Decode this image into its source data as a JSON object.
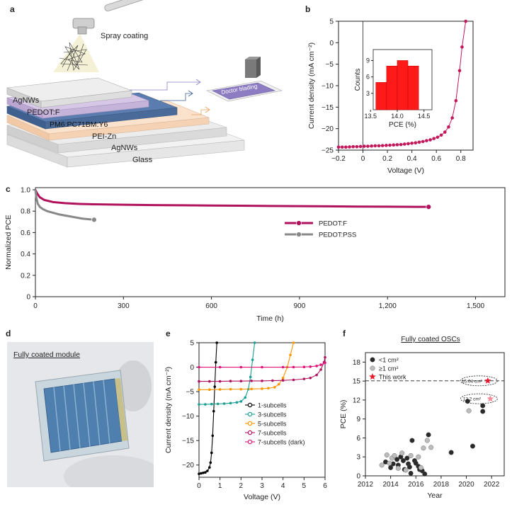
{
  "panel_labels": {
    "a": "a",
    "b": "b",
    "c": "c",
    "d": "d",
    "e": "e",
    "f": "f"
  },
  "schematic": {
    "spray_label": "Spray coating",
    "doctor_label": "Doctor blading",
    "layers": [
      "AgNWs",
      "PEDOT:F",
      "PM6:PC71BM:Y6",
      "PEI-Zn",
      "AgNWs",
      "Glass"
    ],
    "colors": {
      "pedot": "#c5b3d9",
      "active": "#4a6b9a",
      "pei": "#f6d2b4",
      "agnws": "#e3e3e3",
      "glass": "#efefef"
    }
  },
  "photo": {
    "caption": "Fully coated module"
  },
  "chart_data": [
    {
      "id": "b",
      "type": "line",
      "xlabel": "Voltage (V)",
      "ylabel": "Current density (mA cm⁻²)",
      "xlim": [
        -0.2,
        0.9
      ],
      "ylim": [
        -25,
        5
      ],
      "xticks": [
        -0.2,
        0,
        0.2,
        0.4,
        0.6,
        0.8
      ],
      "yticks": [
        5,
        0,
        -5,
        -10,
        -15,
        -20,
        -25
      ],
      "color": "#c2185b",
      "series": [
        {
          "x": [
            -0.2,
            -0.17,
            -0.14,
            -0.11,
            -0.08,
            -0.05,
            -0.02,
            0.01,
            0.04,
            0.07,
            0.1,
            0.13,
            0.16,
            0.19,
            0.22,
            0.25,
            0.28,
            0.31,
            0.34,
            0.37,
            0.4,
            0.43,
            0.46,
            0.49,
            0.52,
            0.55,
            0.58,
            0.61,
            0.64,
            0.67,
            0.7,
            0.73,
            0.76,
            0.79,
            0.81,
            0.84
          ],
          "y": [
            -24.3,
            -24.3,
            -24.3,
            -24.25,
            -24.2,
            -24.2,
            -24.15,
            -24.1,
            -24.1,
            -24.05,
            -24.0,
            -24.0,
            -23.95,
            -23.9,
            -23.85,
            -23.8,
            -23.75,
            -23.7,
            -23.6,
            -23.5,
            -23.4,
            -23.3,
            -23.15,
            -23.0,
            -22.8,
            -22.6,
            -22.3,
            -22.0,
            -21.5,
            -20.8,
            -19.6,
            -17.5,
            -13.5,
            -6.5,
            -1.0,
            5.0
          ]
        }
      ],
      "inset": {
        "type": "bar",
        "xlabel": "PCE (%)",
        "ylabel": "Counts",
        "categories": [
          13.7,
          13.9,
          14.1,
          14.3
        ],
        "values": [
          5,
          8,
          9,
          8
        ],
        "xticks": [
          13.5,
          14.0,
          14.5
        ],
        "yticks": [
          3,
          6,
          9
        ],
        "ylim": [
          0,
          11
        ],
        "xlim": [
          13.55,
          14.65
        ],
        "color": "#ff1a1a"
      }
    },
    {
      "id": "c",
      "type": "line",
      "xlabel": "Time (h)",
      "ylabel": "Normalized PCE",
      "xlim": [
        0,
        1600
      ],
      "ylim": [
        0,
        1.02
      ],
      "xticks": [
        0,
        300,
        600,
        900,
        1200,
        1500
      ],
      "xtick_labels": [
        "0",
        "300",
        "600",
        "900",
        "1,200",
        "1,500"
      ],
      "yticks": [
        0,
        0.2,
        0.4,
        0.6,
        0.8,
        1.0
      ],
      "ytick_labels": [
        "0",
        "0.2",
        "0.4",
        "0.6",
        "0.8",
        "1.0"
      ],
      "legend": "right",
      "series": [
        {
          "name": "PEDOT:F",
          "color": "#b0125e",
          "x": [
            0,
            5,
            15,
            30,
            60,
            100,
            150,
            200,
            300,
            400,
            500,
            600,
            700,
            800,
            900,
            1000,
            1100,
            1200,
            1300,
            1340
          ],
          "y": [
            1.0,
            0.97,
            0.93,
            0.905,
            0.885,
            0.875,
            0.868,
            0.864,
            0.86,
            0.857,
            0.855,
            0.853,
            0.851,
            0.849,
            0.847,
            0.845,
            0.843,
            0.842,
            0.84,
            0.84
          ]
        },
        {
          "name": "PEDOT:PSS",
          "color": "#888888",
          "x": [
            0,
            3,
            8,
            15,
            25,
            40,
            60,
            80,
            100,
            130,
            160,
            200
          ],
          "y": [
            1.0,
            0.93,
            0.87,
            0.84,
            0.82,
            0.8,
            0.785,
            0.77,
            0.76,
            0.745,
            0.73,
            0.72
          ]
        }
      ]
    },
    {
      "id": "e",
      "type": "line",
      "xlabel": "Voltage (V)",
      "ylabel": "Current density (mA cm⁻²)",
      "xlim": [
        0,
        6
      ],
      "ylim": [
        -22.5,
        5
      ],
      "xticks": [
        0,
        1,
        2,
        3,
        4,
        5,
        6
      ],
      "yticks": [
        5,
        0,
        -5,
        -10,
        -15,
        -20
      ],
      "legend": "bottom-right",
      "series": [
        {
          "name": "1-subcells",
          "color": "#000000",
          "x": [
            0,
            0.1,
            0.2,
            0.3,
            0.4,
            0.5,
            0.55,
            0.6,
            0.65,
            0.7,
            0.75,
            0.8,
            0.85
          ],
          "y": [
            -21.8,
            -21.7,
            -21.6,
            -21.5,
            -21.2,
            -20.5,
            -19.5,
            -17.5,
            -14,
            -9,
            -4,
            1,
            5
          ]
        },
        {
          "name": "3-subcells",
          "color": "#1a9e92",
          "x": [
            0,
            0.3,
            0.6,
            0.9,
            1.2,
            1.5,
            1.8,
            2.0,
            2.2,
            2.35,
            2.45,
            2.55,
            2.65
          ],
          "y": [
            -7.6,
            -7.6,
            -7.55,
            -7.5,
            -7.45,
            -7.35,
            -7.2,
            -7.0,
            -6.2,
            -4.5,
            -2,
            1.5,
            5
          ]
        },
        {
          "name": "5-subcells",
          "color": "#ff9500",
          "x": [
            0,
            0.5,
            1,
            1.5,
            2,
            2.5,
            3,
            3.3,
            3.6,
            3.8,
            4.0,
            4.2,
            4.35,
            4.5
          ],
          "y": [
            -4.6,
            -4.6,
            -4.55,
            -4.5,
            -4.5,
            -4.45,
            -4.4,
            -4.3,
            -4.1,
            -3.5,
            -2.2,
            0,
            2.5,
            5
          ]
        },
        {
          "name": "7-subcells",
          "color": "#b0125e",
          "x": [
            0,
            0.5,
            1,
            1.5,
            2,
            2.5,
            3,
            3.5,
            4,
            4.5,
            5,
            5.3,
            5.6,
            5.8,
            5.95,
            6.0
          ],
          "y": [
            -2.9,
            -2.9,
            -2.9,
            -2.85,
            -2.85,
            -2.8,
            -2.8,
            -2.75,
            -2.7,
            -2.6,
            -2.4,
            -2.2,
            -1.6,
            -0.5,
            1.0,
            2.0
          ]
        },
        {
          "name": "7-subcells (dark)",
          "color": "#e0147a",
          "x": [
            0,
            1,
            2,
            3,
            4,
            4.5,
            5,
            5.3,
            5.6,
            5.8,
            6.0
          ],
          "y": [
            0,
            0,
            0,
            0,
            0,
            0.02,
            0.05,
            0.1,
            0.25,
            0.5,
            0.9
          ]
        }
      ]
    },
    {
      "id": "f",
      "type": "scatter",
      "title": "Fully coated OSCs",
      "xlabel": "Year",
      "ylabel": "PCE (%)",
      "xlim": [
        2012,
        2023
      ],
      "ylim": [
        0,
        19.5
      ],
      "xticks": [
        2012,
        2014,
        2016,
        2018,
        2020,
        2022
      ],
      "yticks": [
        0,
        3,
        6,
        9,
        12,
        15,
        18
      ],
      "legend": "top-left",
      "dashed_line_y": 15.04,
      "series": [
        {
          "name": "<1 cm²",
          "color": "#2a2a2a",
          "points": [
            [
              2013.6,
              2.2
            ],
            [
              2014.0,
              1.3
            ],
            [
              2014.2,
              1.9
            ],
            [
              2014.5,
              2.6
            ],
            [
              2014.6,
              1.7
            ],
            [
              2014.8,
              3.0
            ],
            [
              2015.0,
              2.4
            ],
            [
              2015.1,
              1.0
            ],
            [
              2015.3,
              2.8
            ],
            [
              2015.4,
              1.9
            ],
            [
              2015.5,
              1.4
            ],
            [
              2015.6,
              0.4
            ],
            [
              2015.7,
              5.6
            ],
            [
              2015.9,
              2.4
            ],
            [
              2016.0,
              2.0
            ],
            [
              2016.2,
              1.5
            ],
            [
              2016.3,
              1.0
            ],
            [
              2016.5,
              0.8
            ],
            [
              2016.7,
              0.3
            ],
            [
              2017.0,
              6.5
            ],
            [
              2018.8,
              3.7
            ],
            [
              2020.1,
              11.8
            ],
            [
              2020.5,
              4.7
            ],
            [
              2021.3,
              11.1
            ],
            [
              2021.3,
              10.2
            ]
          ]
        },
        {
          "name": "≥1 cm²",
          "color": "#bcbcbc",
          "points": [
            [
              2013.3,
              1.7
            ],
            [
              2013.7,
              3.3
            ],
            [
              2013.9,
              2.0
            ],
            [
              2014.1,
              2.8
            ],
            [
              2014.3,
              3.2
            ],
            [
              2014.6,
              1.2
            ],
            [
              2014.9,
              3.6
            ],
            [
              2015.2,
              0.9
            ],
            [
              2015.6,
              3.2
            ],
            [
              2016.2,
              3.0
            ],
            [
              2016.4,
              1.3
            ],
            [
              2016.6,
              4.4
            ],
            [
              2016.9,
              5.6
            ],
            [
              2017.2,
              4.5
            ],
            [
              2020.2,
              10.3
            ]
          ]
        },
        {
          "name": "This work",
          "color": "#e8192c",
          "points": [
            [
              2021.7,
              15.04
            ],
            [
              2021.9,
              12.2
            ]
          ]
        }
      ],
      "annotations": [
        "15.04 cm²",
        "12.2 cm²"
      ]
    }
  ]
}
